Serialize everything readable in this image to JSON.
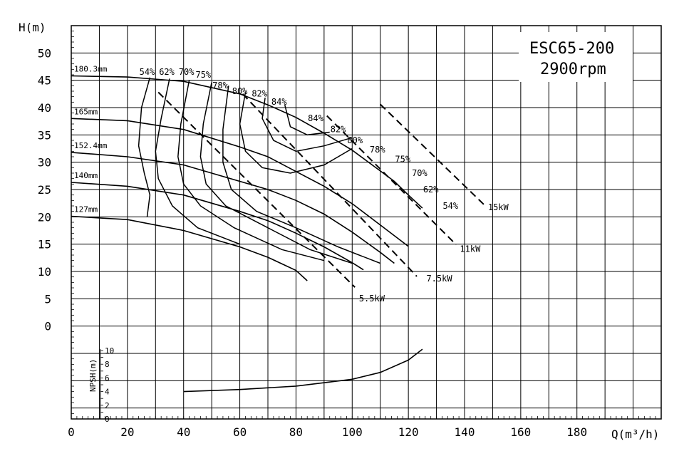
{
  "chart_data": {
    "type": "line",
    "title": "ESC65-200",
    "subtitle": "2900rpm",
    "xlabel": "Q(m³/h)",
    "ylabel": "H(m)",
    "npsh_label": "NPSH(m)",
    "xlim": [
      0,
      210
    ],
    "ylim": [
      -17,
      55
    ],
    "grid": true,
    "x_ticks": [
      "0",
      "20",
      "40",
      "60",
      "80",
      "100",
      "120",
      "140",
      "160",
      "180"
    ],
    "y_ticks": [
      "0",
      "5",
      "10",
      "15",
      "20",
      "25",
      "30",
      "35",
      "40",
      "45",
      "50"
    ],
    "npsh_ticks": [
      "0",
      "2",
      "4",
      "6",
      "8",
      "10"
    ],
    "impeller_curves": [
      {
        "name": "180.3mm",
        "points": [
          [
            0,
            45.8
          ],
          [
            20,
            45.6
          ],
          [
            40,
            44.8
          ],
          [
            60,
            42.5
          ],
          [
            70,
            40.5
          ],
          [
            80,
            38.2
          ],
          [
            90,
            35.3
          ],
          [
            100,
            32.2
          ],
          [
            110,
            28.4
          ],
          [
            115,
            26.5
          ],
          [
            120,
            24.0
          ],
          [
            125,
            21.6
          ]
        ]
      },
      {
        "name": "165mm",
        "points": [
          [
            0,
            38.0
          ],
          [
            20,
            37.6
          ],
          [
            40,
            36.0
          ],
          [
            60,
            32.8
          ],
          [
            70,
            31.0
          ],
          [
            80,
            28.3
          ],
          [
            90,
            25.6
          ],
          [
            100,
            22.4
          ],
          [
            110,
            18.5
          ],
          [
            120,
            14.6
          ]
        ]
      },
      {
        "name": "152.4mm",
        "points": [
          [
            0,
            31.8
          ],
          [
            20,
            31.0
          ],
          [
            40,
            29.5
          ],
          [
            60,
            26.5
          ],
          [
            70,
            25.0
          ],
          [
            80,
            23.0
          ],
          [
            90,
            20.5
          ],
          [
            100,
            17.2
          ],
          [
            110,
            13.5
          ],
          [
            115,
            11.5
          ]
        ]
      },
      {
        "name": "140mm",
        "points": [
          [
            0,
            26.3
          ],
          [
            20,
            25.6
          ],
          [
            40,
            24.0
          ],
          [
            60,
            21.0
          ],
          [
            70,
            19.3
          ],
          [
            80,
            17.0
          ],
          [
            90,
            14.5
          ],
          [
            100,
            11.6
          ],
          [
            104,
            10.3
          ]
        ]
      },
      {
        "name": "127mm",
        "points": [
          [
            0,
            20.1
          ],
          [
            20,
            19.5
          ],
          [
            40,
            17.5
          ],
          [
            60,
            14.5
          ],
          [
            70,
            12.6
          ],
          [
            80,
            10.2
          ],
          [
            84,
            8.3
          ]
        ]
      }
    ],
    "efficiency_labels": {
      "left": [
        "54%",
        "62%",
        "70%",
        "75%",
        "78%",
        "80%",
        "82%",
        "84%"
      ],
      "right": [
        "84%",
        "82%",
        "80%",
        "78%",
        "75%",
        "70%",
        "62%",
        "54%"
      ]
    },
    "power_lines": [
      {
        "name": "5.5kW",
        "points": [
          [
            31,
            42.8
          ],
          [
            101,
            7.1
          ]
        ]
      },
      {
        "name": "7.5kW",
        "points": [
          [
            61,
            42.5
          ],
          [
            123,
            9.1
          ]
        ]
      },
      {
        "name": "11kW",
        "points": [
          [
            91,
            38.5
          ],
          [
            137,
            14.9
          ]
        ]
      },
      {
        "name": "15kW",
        "points": [
          [
            110,
            40.6
          ],
          [
            147,
            22.2
          ]
        ]
      }
    ],
    "npsh_curve": [
      [
        40,
        4.0
      ],
      [
        60,
        4.3
      ],
      [
        80,
        4.8
      ],
      [
        100,
        5.8
      ],
      [
        110,
        6.8
      ],
      [
        120,
        8.6
      ],
      [
        125,
        10.2
      ]
    ]
  }
}
